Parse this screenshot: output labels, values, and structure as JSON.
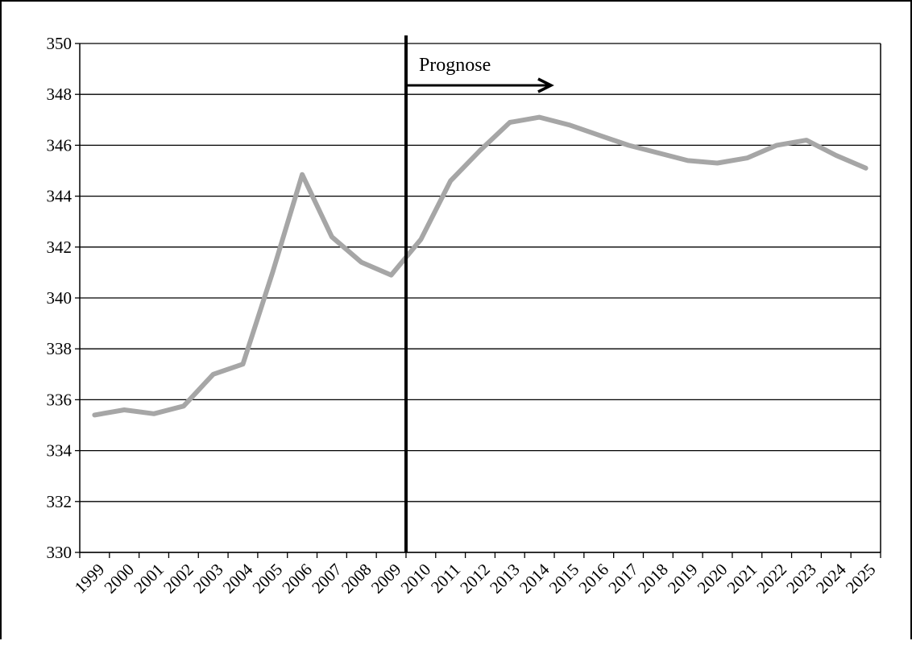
{
  "chart_data": {
    "type": "line",
    "title": "",
    "xlabel": "",
    "ylabel": "",
    "ylim": [
      330,
      350
    ],
    "y_ticks": [
      330,
      332,
      334,
      336,
      338,
      340,
      342,
      344,
      346,
      348,
      350
    ],
    "grid": "horizontal",
    "categories": [
      "1999",
      "2000",
      "2001",
      "2002",
      "2003",
      "2004",
      "2005",
      "2006",
      "2007",
      "2008",
      "2009",
      "2010",
      "2011",
      "2012",
      "2013",
      "2014",
      "2015",
      "2016",
      "2017",
      "2018",
      "2019",
      "2020",
      "2021",
      "2022",
      "2023",
      "2024",
      "2025"
    ],
    "series": [
      {
        "name": "",
        "color": "#a6a6a6",
        "values": [
          335.4,
          335.6,
          335.45,
          335.75,
          337.0,
          337.4,
          341.0,
          344.85,
          342.4,
          341.4,
          340.9,
          342.3,
          344.6,
          345.8,
          346.9,
          347.1,
          346.8,
          346.4,
          346.0,
          345.7,
          345.4,
          345.3,
          345.5,
          346.0,
          346.2,
          345.6,
          345.1
        ]
      }
    ],
    "annotation": {
      "label": "Prognose",
      "divider_after_category": "2009",
      "arrow_direction": "right"
    }
  }
}
